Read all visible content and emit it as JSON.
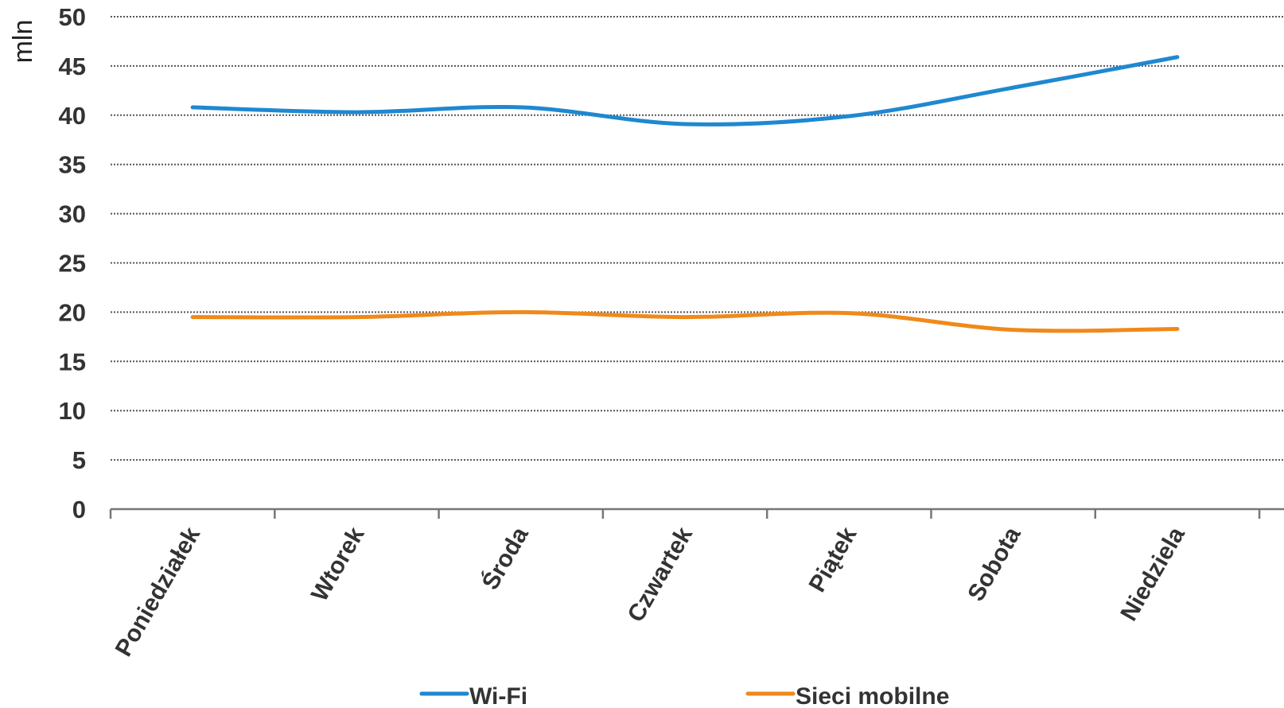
{
  "chart_data": {
    "type": "line",
    "title": "",
    "xlabel": "",
    "ylabel": "mln",
    "categories": [
      "Poniedziałek",
      "Wtorek",
      "Środa",
      "Czwartek",
      "Piątek",
      "Sobota",
      "Niedziela"
    ],
    "series": [
      {
        "name": "Wi-Fi",
        "color": "#1f88d0",
        "values": [
          40.8,
          40.3,
          40.8,
          39.1,
          39.9,
          42.8,
          45.9
        ]
      },
      {
        "name": "Sieci mobilne",
        "color": "#f0891a",
        "values": [
          19.5,
          19.5,
          20.0,
          19.5,
          19.9,
          18.2,
          18.3
        ]
      }
    ],
    "ylim": [
      0,
      50
    ],
    "yticks": [
      "0",
      "5",
      "10",
      "15",
      "20",
      "25",
      "30",
      "35",
      "40",
      "45",
      "50"
    ],
    "grid": true,
    "smooth": true,
    "legend": "bottom"
  }
}
